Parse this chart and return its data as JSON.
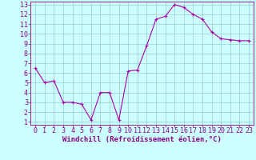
{
  "x": [
    0,
    1,
    2,
    3,
    4,
    5,
    6,
    7,
    8,
    9,
    10,
    11,
    12,
    13,
    14,
    15,
    16,
    17,
    18,
    19,
    20,
    21,
    22,
    23
  ],
  "y": [
    6.5,
    5.0,
    5.2,
    3.0,
    3.0,
    2.8,
    1.2,
    4.0,
    4.0,
    1.2,
    6.2,
    6.3,
    8.8,
    11.5,
    11.8,
    13.0,
    12.7,
    12.0,
    11.5,
    10.2,
    9.5,
    9.4,
    9.3,
    9.3
  ],
  "line_color": "#aa00aa",
  "marker": "+",
  "marker_size": 3,
  "bg_color": "#ccffff",
  "grid_color": "#99cccc",
  "xlabel": "Windchill (Refroidissement éolien,°C)",
  "ylim_min": 1,
  "ylim_max": 13,
  "xlim_min": 0,
  "xlim_max": 23,
  "yticks": [
    1,
    2,
    3,
    4,
    5,
    6,
    7,
    8,
    9,
    10,
    11,
    12,
    13
  ],
  "xticks": [
    0,
    1,
    2,
    3,
    4,
    5,
    6,
    7,
    8,
    9,
    10,
    11,
    12,
    13,
    14,
    15,
    16,
    17,
    18,
    19,
    20,
    21,
    22,
    23
  ],
  "tick_color": "#880088",
  "label_color": "#880088",
  "spine_color": "#880088",
  "xlabel_fontsize": 6.5,
  "tick_fontsize": 6.0,
  "linewidth": 0.8,
  "marker_edge_width": 0.8
}
